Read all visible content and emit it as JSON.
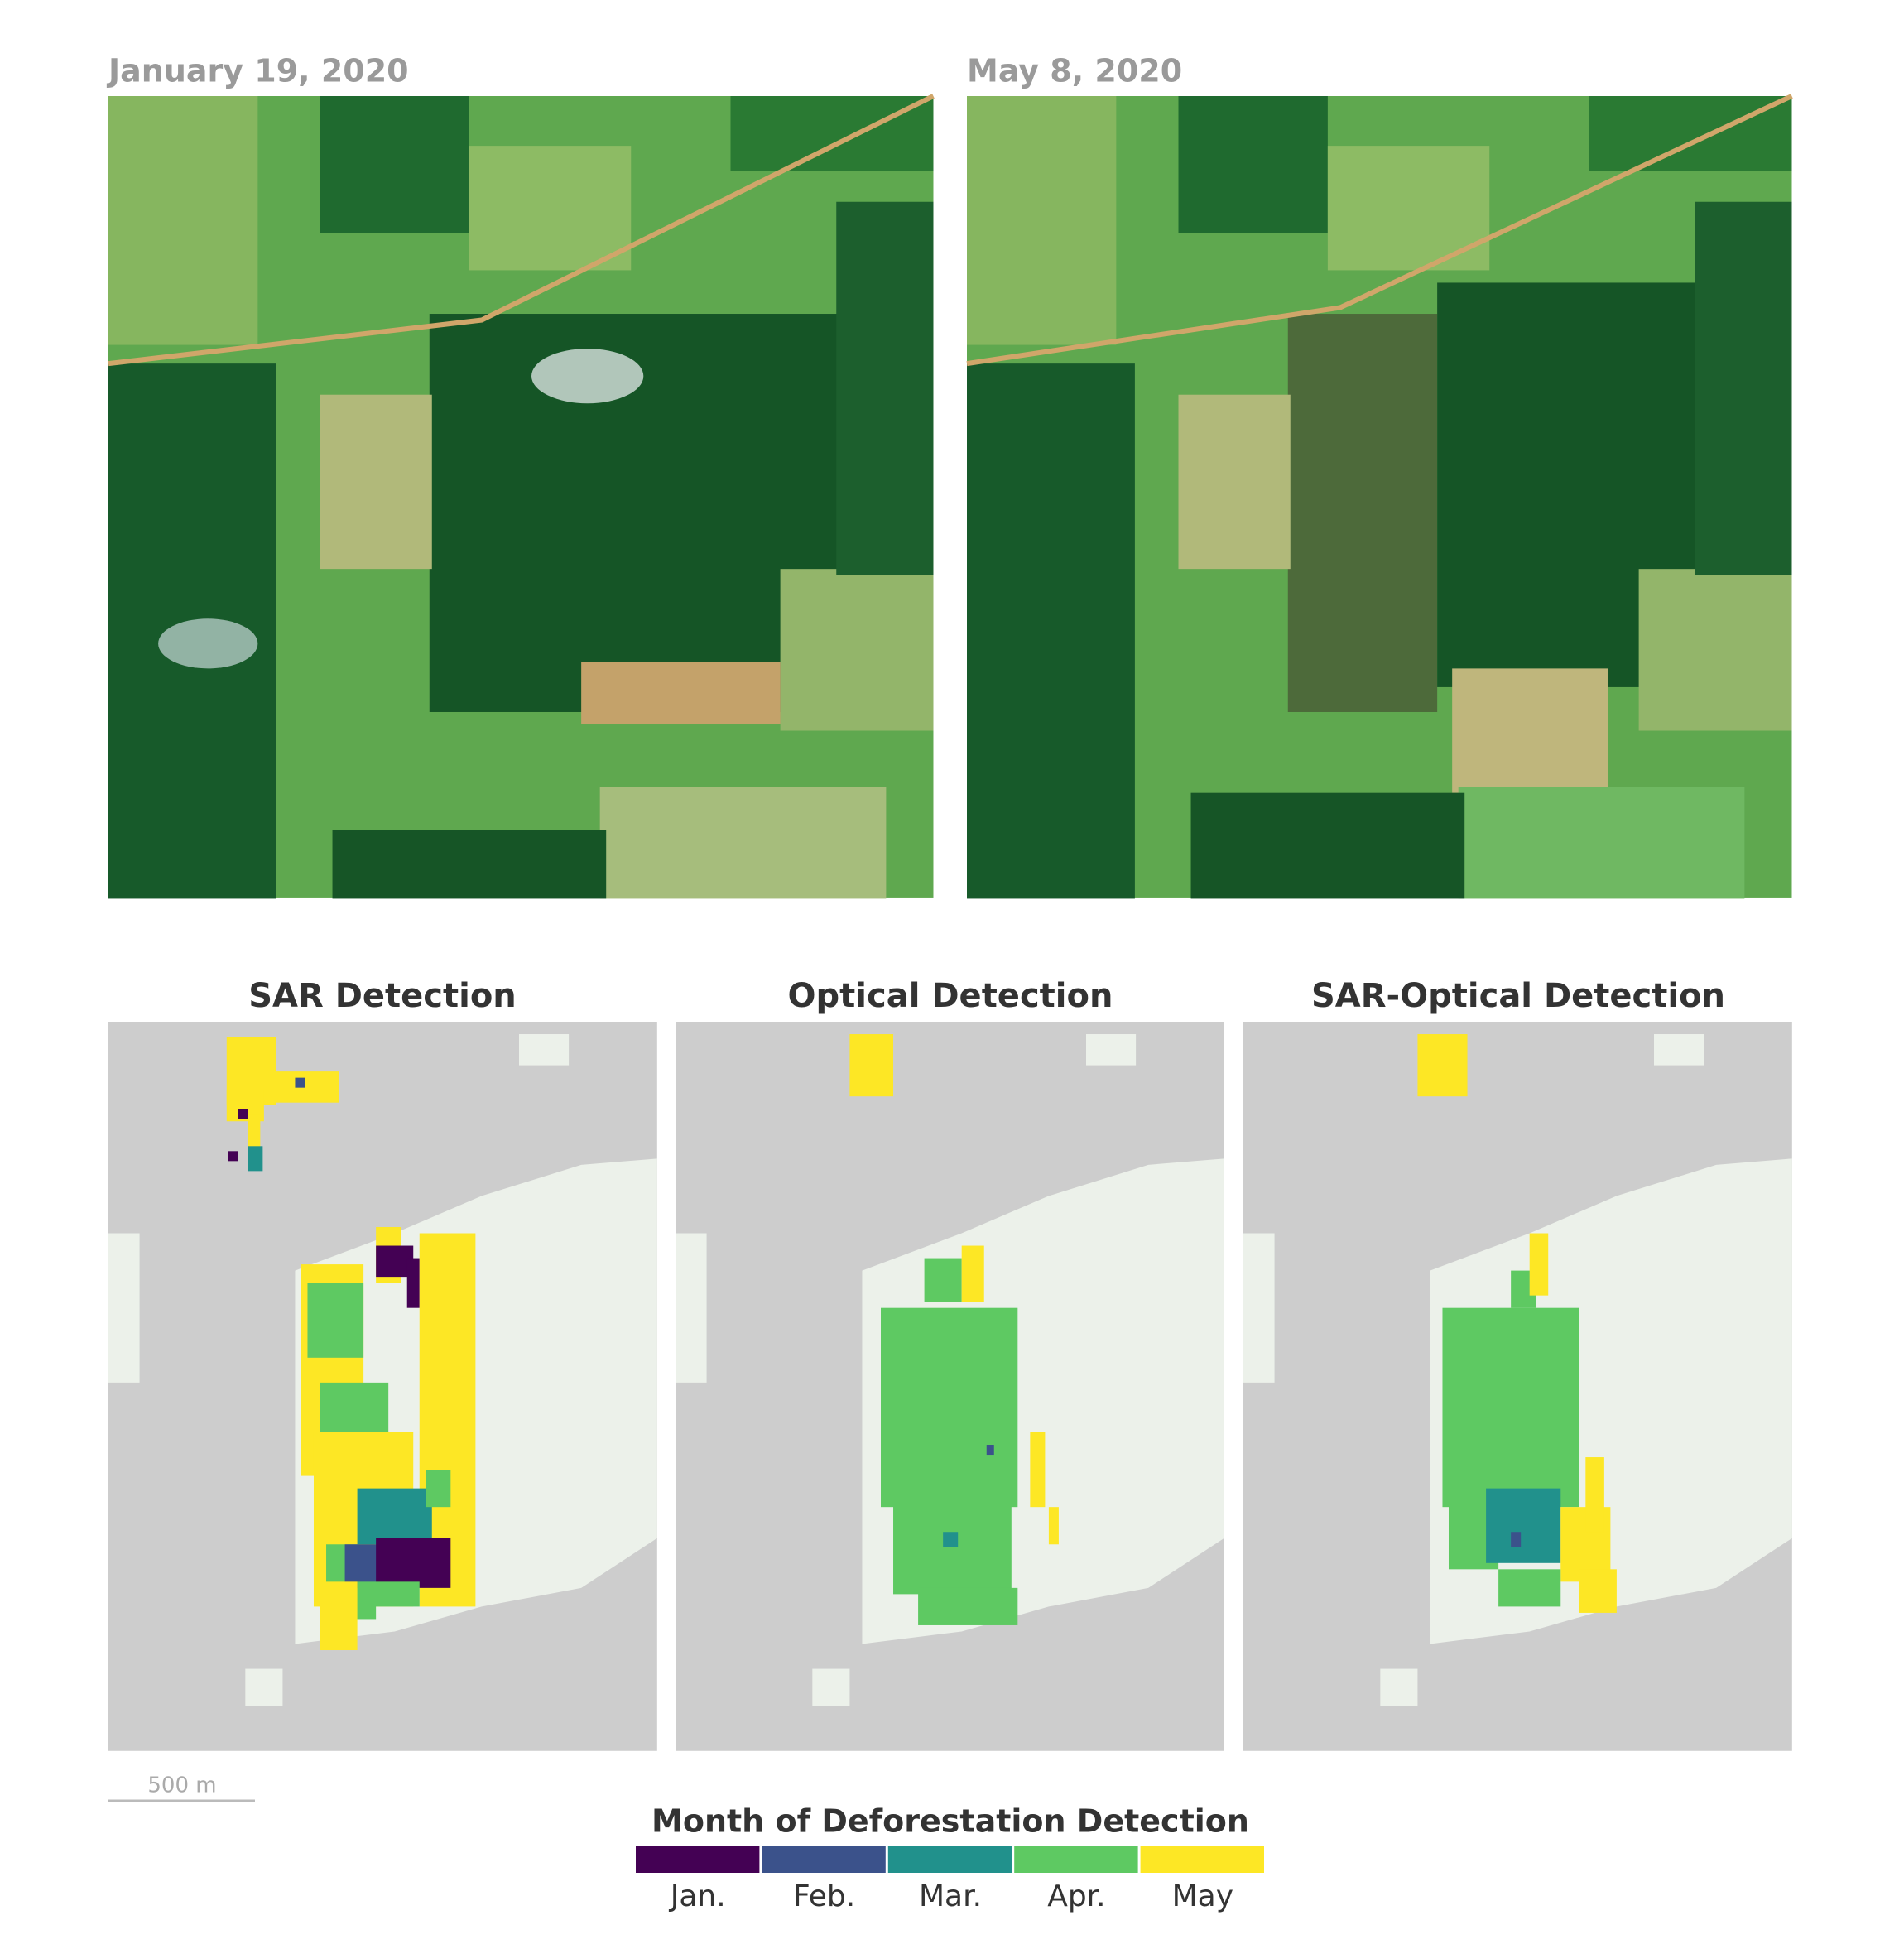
{
  "images": [
    {
      "date": "January 19, 2020"
    },
    {
      "date": "May 8, 2020"
    }
  ],
  "panels": [
    {
      "title": "SAR Detection"
    },
    {
      "title": "Optical Detection"
    },
    {
      "title": "SAR-Optical Detection"
    }
  ],
  "scale_bar": {
    "label": "500 m"
  },
  "legend": {
    "title": "Month of Deforestation Detection",
    "items": [
      {
        "label": "Jan.",
        "color": "#440154"
      },
      {
        "label": "Feb.",
        "color": "#3b528b"
      },
      {
        "label": "Mar.",
        "color": "#21918c"
      },
      {
        "label": "Apr.",
        "color": "#5ec962"
      },
      {
        "label": "May",
        "color": "#fde725"
      }
    ]
  }
}
